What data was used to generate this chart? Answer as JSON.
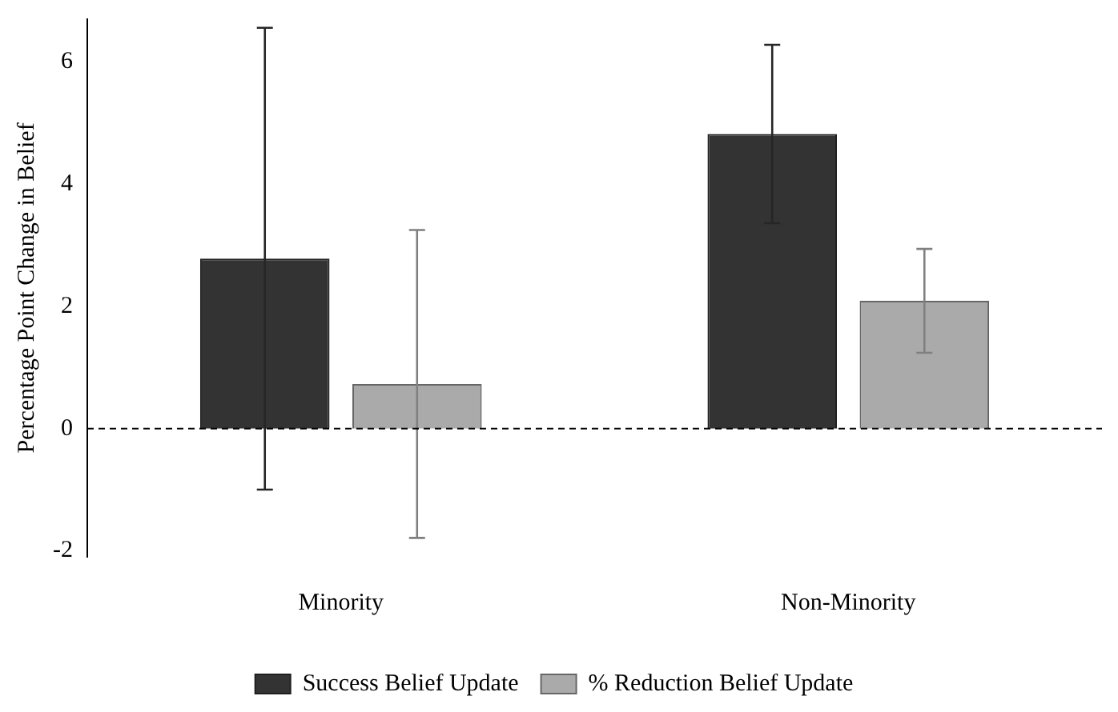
{
  "chart_data": {
    "type": "bar",
    "ylabel": "Percentage Point Change in Belief",
    "categories": [
      "Minority",
      "Non-Minority"
    ],
    "series": [
      {
        "name": "Success Belief Update",
        "color": "#333333",
        "values": [
          2.78,
          4.82
        ],
        "errors": [
          3.78,
          1.46
        ]
      },
      {
        "name": "% Reduction Belief Update",
        "color": "#aaaaaa",
        "values": [
          0.73,
          2.09
        ],
        "errors": [
          2.52,
          0.85
        ]
      }
    ],
    "ylim": [
      -2.1,
      6.7
    ],
    "yticks": [
      -2,
      0,
      2,
      4,
      6
    ],
    "grid": false,
    "legend": "bottom",
    "ref_lines": [
      {
        "axis": "y",
        "value": 0,
        "line_style": "dashed",
        "color": "#000000"
      }
    ]
  }
}
